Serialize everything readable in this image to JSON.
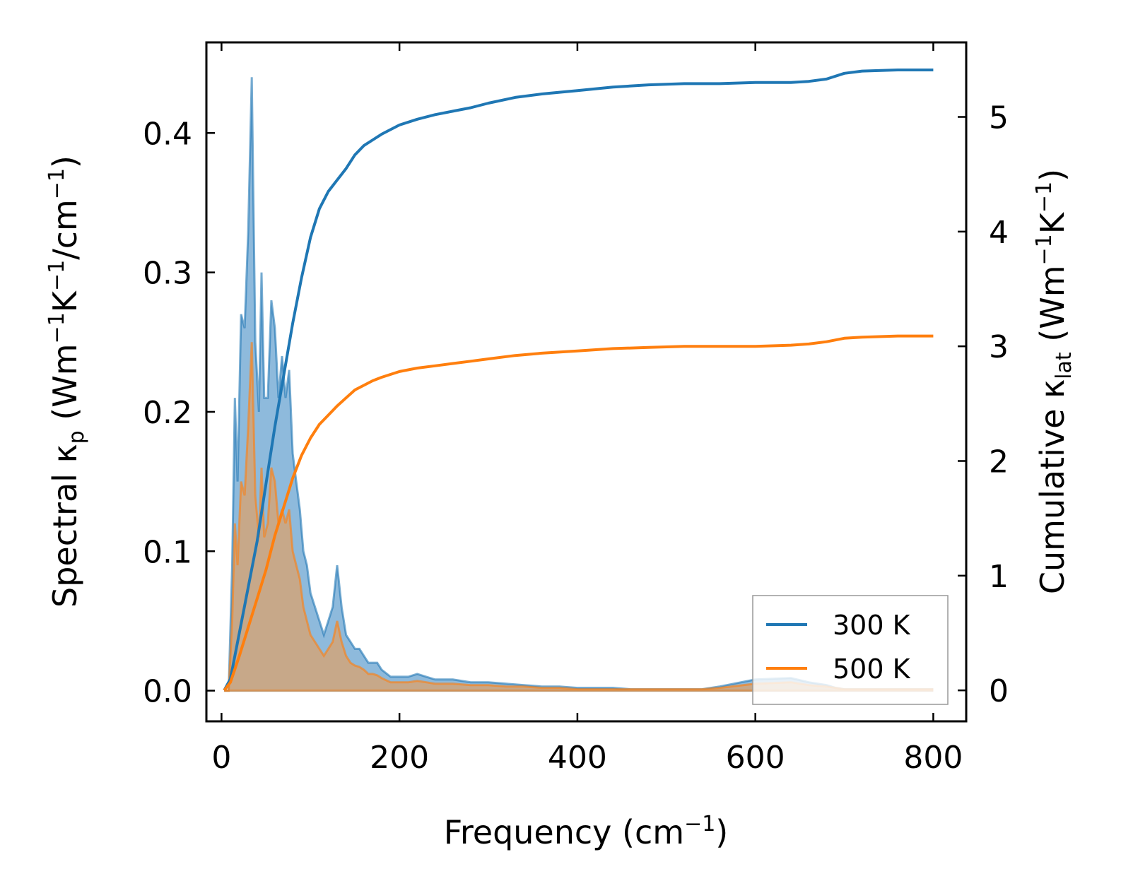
{
  "chart_data": {
    "type": "line",
    "xlabel": "Frequency (cm",
    "xlabel_sup": "−1",
    "xlabel_end": ")",
    "ylabel_left": {
      "prefix": "Spectral κ",
      "sub": "p",
      "unit_open": " (Wm",
      "sup1": "−1",
      "k": "K",
      "sup2": "−1",
      "per": "/cm",
      "sup3": "−1",
      "close": ")"
    },
    "ylabel_right": {
      "prefix": "Cumulative κ",
      "sub": "lat",
      "unit_open": " (Wm",
      "sup1": "−1",
      "k": "K",
      "sup2": "−1",
      "close": ")"
    },
    "xlim": [
      -17,
      837
    ],
    "ylim_left": [
      -0.022,
      0.465
    ],
    "ylim_right": [
      -0.27,
      5.65
    ],
    "x_ticks": [
      0,
      200,
      400,
      600,
      800
    ],
    "x_tick_labels": [
      "0",
      "200",
      "400",
      "600",
      "800"
    ],
    "y_left_ticks": [
      0.0,
      0.1,
      0.2,
      0.3,
      0.4
    ],
    "y_left_tick_labels": [
      "0.0",
      "0.1",
      "0.2",
      "0.3",
      "0.4"
    ],
    "y_right_ticks": [
      0,
      1,
      2,
      3,
      4,
      5
    ],
    "y_right_tick_labels": [
      "0",
      "1",
      "2",
      "3",
      "4",
      "5"
    ],
    "legend": {
      "position": "bottom-right",
      "entries": [
        "300 K",
        "500 K"
      ]
    },
    "colors": {
      "s300": "#1f77b4",
      "s500": "#ff7f0e",
      "fill300": "#7aaed6",
      "fill500": "#d9a26e"
    },
    "series": [
      {
        "name": "300 K",
        "axis": "left",
        "kind": "spectral",
        "x": [
          3,
          8,
          12,
          15,
          18,
          22,
          26,
          30,
          34,
          38,
          42,
          45,
          48,
          52,
          56,
          60,
          64,
          68,
          72,
          76,
          80,
          84,
          88,
          92,
          96,
          100,
          105,
          110,
          115,
          120,
          125,
          130,
          135,
          140,
          145,
          150,
          155,
          160,
          165,
          170,
          175,
          180,
          190,
          200,
          210,
          220,
          230,
          240,
          260,
          280,
          300,
          320,
          340,
          360,
          380,
          400,
          420,
          440,
          460,
          480,
          500,
          520,
          540,
          560,
          600,
          640,
          660,
          680,
          690,
          700,
          720,
          740,
          760,
          780,
          800
        ],
        "values": [
          0,
          0,
          0.09,
          0.21,
          0.15,
          0.27,
          0.26,
          0.33,
          0.44,
          0.25,
          0.2,
          0.3,
          0.21,
          0.21,
          0.28,
          0.26,
          0.21,
          0.24,
          0.21,
          0.23,
          0.17,
          0.15,
          0.13,
          0.1,
          0.09,
          0.07,
          0.06,
          0.05,
          0.04,
          0.05,
          0.06,
          0.09,
          0.06,
          0.04,
          0.035,
          0.03,
          0.03,
          0.025,
          0.02,
          0.02,
          0.02,
          0.015,
          0.01,
          0.01,
          0.01,
          0.012,
          0.01,
          0.008,
          0.008,
          0.006,
          0.006,
          0.005,
          0.004,
          0.003,
          0.003,
          0.002,
          0.002,
          0.002,
          0.001,
          0.001,
          0.001,
          0.001,
          0.001,
          0.003,
          0.008,
          0.009,
          0.006,
          0.004,
          0.002,
          0.001,
          0.001,
          0.001,
          0.001,
          0.001,
          0.001
        ]
      },
      {
        "name": "500 K",
        "axis": "left",
        "kind": "spectral",
        "x": [
          3,
          8,
          12,
          15,
          18,
          22,
          26,
          30,
          34,
          38,
          42,
          45,
          48,
          52,
          56,
          60,
          64,
          68,
          72,
          76,
          80,
          84,
          88,
          92,
          96,
          100,
          105,
          110,
          115,
          120,
          125,
          130,
          135,
          140,
          145,
          150,
          155,
          160,
          165,
          170,
          175,
          180,
          190,
          200,
          210,
          220,
          230,
          240,
          260,
          280,
          300,
          320,
          340,
          360,
          380,
          400,
          420,
          440,
          460,
          480,
          500,
          520,
          540,
          560,
          600,
          640,
          660,
          680,
          690,
          700,
          720,
          740,
          760,
          780,
          800
        ],
        "values": [
          0,
          0,
          0.05,
          0.12,
          0.09,
          0.15,
          0.14,
          0.19,
          0.25,
          0.14,
          0.11,
          0.16,
          0.11,
          0.12,
          0.16,
          0.15,
          0.12,
          0.13,
          0.12,
          0.13,
          0.1,
          0.09,
          0.08,
          0.06,
          0.05,
          0.04,
          0.035,
          0.03,
          0.025,
          0.03,
          0.035,
          0.05,
          0.035,
          0.025,
          0.02,
          0.018,
          0.017,
          0.015,
          0.012,
          0.012,
          0.011,
          0.009,
          0.006,
          0.006,
          0.006,
          0.007,
          0.006,
          0.005,
          0.005,
          0.004,
          0.004,
          0.003,
          0.003,
          0.002,
          0.002,
          0.001,
          0.001,
          0.001,
          0.001,
          0.001,
          0.001,
          0.001,
          0.001,
          0.002,
          0.005,
          0.006,
          0.004,
          0.003,
          0.002,
          0.001,
          0.001,
          0.001,
          0.001,
          0.001,
          0.001
        ]
      },
      {
        "name": "300 K cumulative",
        "axis": "right",
        "kind": "cumulative",
        "x": [
          3,
          10,
          20,
          30,
          40,
          50,
          60,
          70,
          80,
          90,
          100,
          110,
          120,
          130,
          140,
          150,
          160,
          170,
          180,
          200,
          220,
          240,
          260,
          280,
          300,
          330,
          360,
          400,
          440,
          480,
          520,
          560,
          600,
          640,
          660,
          680,
          700,
          720,
          760,
          800
        ],
        "values": [
          0,
          0.1,
          0.5,
          0.9,
          1.3,
          1.8,
          2.3,
          2.75,
          3.2,
          3.6,
          3.95,
          4.2,
          4.35,
          4.45,
          4.55,
          4.67,
          4.75,
          4.8,
          4.85,
          4.93,
          4.98,
          5.02,
          5.05,
          5.08,
          5.12,
          5.17,
          5.2,
          5.23,
          5.26,
          5.28,
          5.29,
          5.29,
          5.3,
          5.3,
          5.31,
          5.33,
          5.38,
          5.4,
          5.41,
          5.41
        ]
      },
      {
        "name": "500 K cumulative",
        "axis": "right",
        "kind": "cumulative",
        "x": [
          3,
          10,
          20,
          30,
          40,
          50,
          60,
          70,
          80,
          90,
          100,
          110,
          120,
          130,
          140,
          150,
          160,
          170,
          180,
          200,
          220,
          240,
          260,
          280,
          300,
          330,
          360,
          400,
          440,
          480,
          520,
          560,
          600,
          640,
          660,
          680,
          700,
          720,
          760,
          800
        ],
        "values": [
          0,
          0.07,
          0.3,
          0.55,
          0.8,
          1.05,
          1.35,
          1.6,
          1.85,
          2.05,
          2.2,
          2.32,
          2.4,
          2.48,
          2.55,
          2.62,
          2.66,
          2.7,
          2.73,
          2.78,
          2.81,
          2.83,
          2.85,
          2.87,
          2.89,
          2.92,
          2.94,
          2.96,
          2.98,
          2.99,
          3.0,
          3.0,
          3.0,
          3.01,
          3.02,
          3.04,
          3.07,
          3.08,
          3.09,
          3.09
        ]
      }
    ]
  }
}
